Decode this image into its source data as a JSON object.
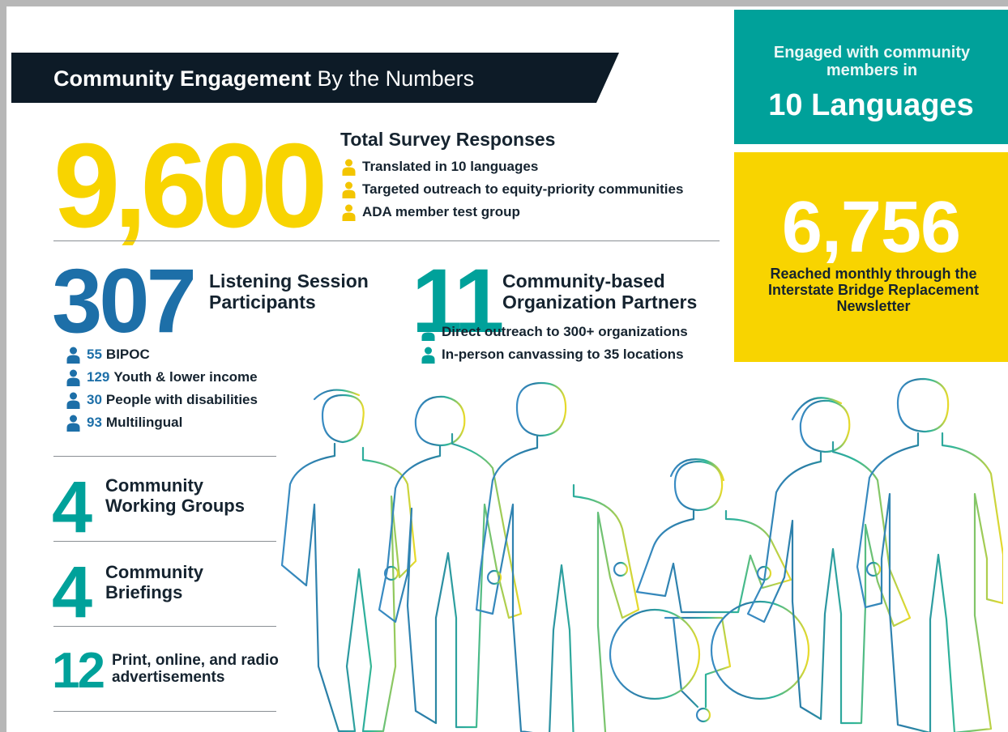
{
  "header": {
    "title_bold": "Community Engagement",
    "title_rest": "By the Numbers"
  },
  "survey": {
    "number": "9,600",
    "label": "Total Survey Responses",
    "bullets": [
      "Translated in 10 languages",
      "Targeted outreach to equity-priority communities",
      "ADA member test group"
    ]
  },
  "listening": {
    "number": "307",
    "label": "Listening Session Participants",
    "breakdown": [
      {
        "number": "55",
        "label": "BIPOC"
      },
      {
        "number": "129",
        "label": "Youth & lower income"
      },
      {
        "number": "30",
        "label": "People with disabilities"
      },
      {
        "number": "93",
        "label": "Multilingual"
      }
    ]
  },
  "partners": {
    "number": "11",
    "label": "Community-based Organization Partners",
    "bullets": [
      "Direct outreach to 300+ organizations",
      "In-person canvassing to 35 locations"
    ]
  },
  "stats": [
    {
      "number": "4",
      "label": "Community Working Groups"
    },
    {
      "number": "4",
      "label": "Community Briefings"
    },
    {
      "number": "12",
      "label": "Print, online, and radio advertisements"
    }
  ],
  "languages": {
    "lead": "Engaged with community members in",
    "highlight": "10 Languages"
  },
  "newsletter": {
    "number": "6,756",
    "label": "Reached monthly through the Interstate Bridge Replacement Newsletter"
  }
}
